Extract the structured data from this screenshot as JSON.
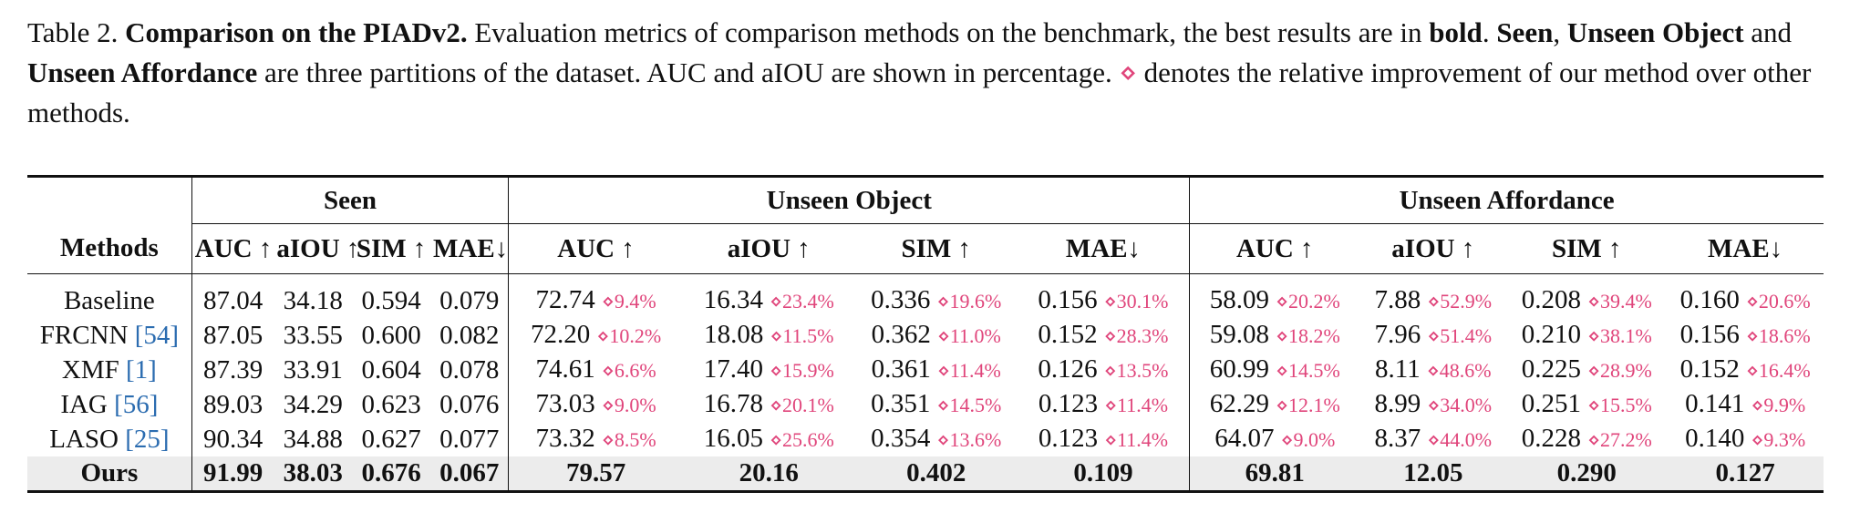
{
  "caption": {
    "label": "Table 2.",
    "title": "Comparison on the PIADv2.",
    "text1": "Evaluation metrics of comparison methods on the benchmark, the best results are in",
    "bold_word": "bold",
    "seen": "Seen",
    "unseen_object": "Unseen Object",
    "and": "and",
    "unseen_affordance": "Unseen Affordance",
    "text2": "are three partitions of the dataset. AUC and aIOU are shown in percentage.",
    "diamond": "⋄",
    "text3": "denotes the relative improvement of our method over other methods."
  },
  "table": {
    "groups": [
      "Seen",
      "Unseen Object",
      "Unseen Affordance"
    ],
    "methods_header": "Methods",
    "seen_cols": [
      "AUC ↑",
      "aIOU ↑",
      "SIM ↑",
      "MAE↓"
    ],
    "obj_cols": [
      "AUC ↑",
      "aIOU ↑",
      "SIM ↑",
      "MAE↓"
    ],
    "aff_cols": [
      "AUC ↑",
      "aIOU ↑",
      "SIM ↑",
      "MAE↓"
    ],
    "rows": [
      {
        "name": "Baseline",
        "ref": "",
        "seen": [
          "87.04",
          "34.18",
          "0.594",
          "0.079"
        ],
        "obj": [
          [
            "72.74",
            "⋄9.4%"
          ],
          [
            "16.34",
            "⋄23.4%"
          ],
          [
            "0.336",
            "⋄19.6%"
          ],
          [
            "0.156",
            "⋄30.1%"
          ]
        ],
        "aff": [
          [
            "58.09",
            "⋄20.2%"
          ],
          [
            "7.88",
            "⋄52.9%"
          ],
          [
            "0.208",
            "⋄39.4%"
          ],
          [
            "0.160",
            "⋄20.6%"
          ]
        ]
      },
      {
        "name": "FRCNN",
        "ref": "[54]",
        "seen": [
          "87.05",
          "33.55",
          "0.600",
          "0.082"
        ],
        "obj": [
          [
            "72.20",
            "⋄10.2%"
          ],
          [
            "18.08",
            "⋄11.5%"
          ],
          [
            "0.362",
            "⋄11.0%"
          ],
          [
            "0.152",
            "⋄28.3%"
          ]
        ],
        "aff": [
          [
            "59.08",
            "⋄18.2%"
          ],
          [
            "7.96",
            "⋄51.4%"
          ],
          [
            "0.210",
            "⋄38.1%"
          ],
          [
            "0.156",
            "⋄18.6%"
          ]
        ]
      },
      {
        "name": "XMF",
        "ref": "[1]",
        "seen": [
          "87.39",
          "33.91",
          "0.604",
          "0.078"
        ],
        "obj": [
          [
            "74.61",
            "⋄6.6%"
          ],
          [
            "17.40",
            "⋄15.9%"
          ],
          [
            "0.361",
            "⋄11.4%"
          ],
          [
            "0.126",
            "⋄13.5%"
          ]
        ],
        "aff": [
          [
            "60.99",
            "⋄14.5%"
          ],
          [
            "8.11",
            "⋄48.6%"
          ],
          [
            "0.225",
            "⋄28.9%"
          ],
          [
            "0.152",
            "⋄16.4%"
          ]
        ]
      },
      {
        "name": "IAG",
        "ref": "[56]",
        "seen": [
          "89.03",
          "34.29",
          "0.623",
          "0.076"
        ],
        "obj": [
          [
            "73.03",
            "⋄9.0%"
          ],
          [
            "16.78",
            "⋄20.1%"
          ],
          [
            "0.351",
            "⋄14.5%"
          ],
          [
            "0.123",
            "⋄11.4%"
          ]
        ],
        "aff": [
          [
            "62.29",
            "⋄12.1%"
          ],
          [
            "8.99",
            "⋄34.0%"
          ],
          [
            "0.251",
            "⋄15.5%"
          ],
          [
            "0.141",
            "⋄9.9%"
          ]
        ]
      },
      {
        "name": "LASO",
        "ref": "[25]",
        "seen": [
          "90.34",
          "34.88",
          "0.627",
          "0.077"
        ],
        "obj": [
          [
            "73.32",
            "⋄8.5%"
          ],
          [
            "16.05",
            "⋄25.6%"
          ],
          [
            "0.354",
            "⋄13.6%"
          ],
          [
            "0.123",
            "⋄11.4%"
          ]
        ],
        "aff": [
          [
            "64.07",
            "⋄9.0%"
          ],
          [
            "8.37",
            "⋄44.0%"
          ],
          [
            "0.228",
            "⋄27.2%"
          ],
          [
            "0.140",
            "⋄9.3%"
          ]
        ]
      }
    ],
    "ours": {
      "name": "Ours",
      "seen": [
        "91.99",
        "38.03",
        "0.676",
        "0.067"
      ],
      "obj": [
        "79.57",
        "20.16",
        "0.402",
        "0.109"
      ],
      "aff": [
        "69.81",
        "12.05",
        "0.290",
        "0.127"
      ]
    }
  }
}
